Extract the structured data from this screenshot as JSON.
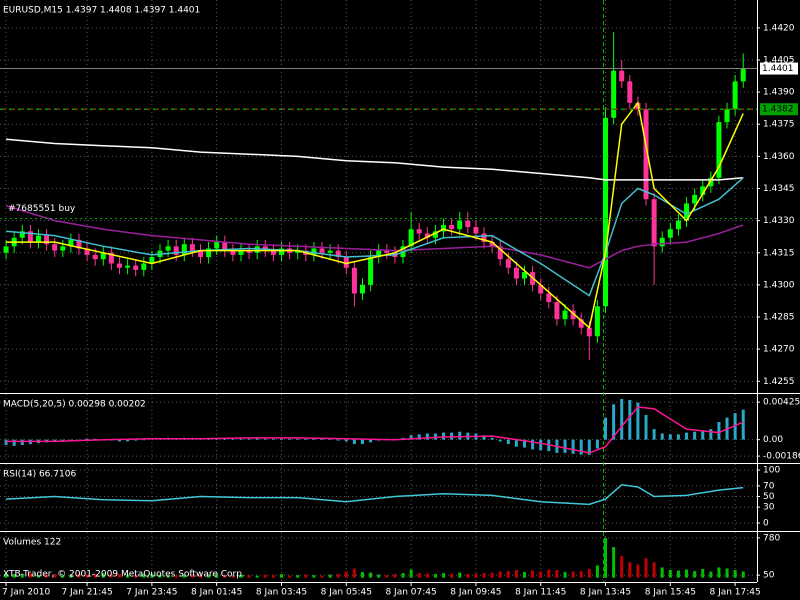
{
  "chart_data": [
    {
      "type": "candlestick",
      "title": "EURUSD,M15  1.4397 1.4408 1.4397 1.4401",
      "x": [
        0,
        1,
        2,
        3,
        4,
        5,
        6,
        7,
        8,
        9,
        10,
        11,
        12,
        13,
        14,
        15,
        16,
        17,
        18,
        19,
        20,
        21,
        22,
        23,
        24,
        25,
        26,
        27,
        28,
        29,
        30,
        31,
        32,
        33,
        34,
        35,
        36,
        37,
        38,
        39,
        40,
        41,
        42,
        43,
        44,
        45,
        46,
        47,
        48,
        49,
        50,
        51,
        52,
        53,
        54,
        55,
        56,
        57,
        58,
        59,
        60,
        61,
        62,
        63,
        64,
        65,
        66,
        67,
        68,
        69,
        70,
        71,
        72,
        73,
        74,
        75,
        76,
        77,
        78,
        79,
        80,
        81,
        82,
        83,
        84,
        85,
        86,
        87,
        88,
        89,
        90,
        91
      ],
      "open": [
        1.4315,
        1.4318,
        1.4322,
        1.4325,
        1.432,
        1.4323,
        1.4319,
        1.4316,
        1.4318,
        1.4321,
        1.4317,
        1.4314,
        1.4312,
        1.4315,
        1.431,
        1.4308,
        1.4309,
        1.4307,
        1.431,
        1.4313,
        1.4316,
        1.4318,
        1.4314,
        1.4319,
        1.4316,
        1.4313,
        1.4317,
        1.432,
        1.4316,
        1.4314,
        1.4316,
        1.4315,
        1.4318,
        1.4316,
        1.4314,
        1.4317,
        1.4315,
        1.4316,
        1.4314,
        1.4317,
        1.4315,
        1.4316,
        1.4313,
        1.4308,
        1.4296,
        1.43,
        1.4313,
        1.4316,
        1.4315,
        1.4313,
        1.4318,
        1.4326,
        1.4324,
        1.4322,
        1.4325,
        1.4328,
        1.4326,
        1.433,
        1.4327,
        1.4324,
        1.432,
        1.4318,
        1.4312,
        1.4308,
        1.4303,
        1.4306,
        1.43,
        1.4296,
        1.4292,
        1.4284,
        1.4288,
        1.4284,
        1.428,
        1.4276,
        1.429,
        1.4378,
        1.44,
        1.4395,
        1.4385,
        1.4382,
        1.434,
        1.4318,
        1.4322,
        1.4326,
        1.433,
        1.4338,
        1.4342,
        1.4346,
        1.435,
        1.4376,
        1.4382,
        1.4395
      ],
      "high": [
        1.4321,
        1.4325,
        1.4328,
        1.4328,
        1.4326,
        1.4326,
        1.4322,
        1.4321,
        1.4324,
        1.4324,
        1.432,
        1.4317,
        1.4318,
        1.4318,
        1.4313,
        1.4312,
        1.4312,
        1.4313,
        1.4316,
        1.4319,
        1.4321,
        1.4321,
        1.4322,
        1.4322,
        1.4319,
        1.432,
        1.4323,
        1.4323,
        1.4319,
        1.4319,
        1.4319,
        1.4321,
        1.4321,
        1.4319,
        1.432,
        1.432,
        1.4319,
        1.4319,
        1.432,
        1.432,
        1.4319,
        1.4319,
        1.4316,
        1.4311,
        1.4303,
        1.4316,
        1.4319,
        1.4319,
        1.4318,
        1.4321,
        1.4334,
        1.4329,
        1.4327,
        1.4328,
        1.4331,
        1.4331,
        1.4334,
        1.4334,
        1.433,
        1.4327,
        1.4323,
        1.4321,
        1.4315,
        1.4311,
        1.4309,
        1.4309,
        1.4303,
        1.4299,
        1.4295,
        1.4291,
        1.4291,
        1.4287,
        1.4283,
        1.4293,
        1.4383,
        1.4418,
        1.4405,
        1.4398,
        1.4388,
        1.4385,
        1.4343,
        1.4325,
        1.4329,
        1.4333,
        1.4341,
        1.4345,
        1.4349,
        1.4353,
        1.4379,
        1.4385,
        1.4398,
        1.4408
      ],
      "low": [
        1.4312,
        1.4315,
        1.4319,
        1.4317,
        1.4317,
        1.4316,
        1.4313,
        1.4313,
        1.4315,
        1.4314,
        1.4311,
        1.4309,
        1.4309,
        1.4307,
        1.4305,
        1.4305,
        1.4304,
        1.4304,
        1.4307,
        1.431,
        1.4313,
        1.4311,
        1.4311,
        1.4313,
        1.431,
        1.431,
        1.4314,
        1.4313,
        1.4311,
        1.4311,
        1.4312,
        1.4312,
        1.4313,
        1.4311,
        1.4311,
        1.4312,
        1.4312,
        1.4311,
        1.4311,
        1.4312,
        1.4312,
        1.431,
        1.4305,
        1.429,
        1.4293,
        1.4297,
        1.431,
        1.4312,
        1.431,
        1.431,
        1.4315,
        1.4321,
        1.4319,
        1.4319,
        1.4322,
        1.4323,
        1.4323,
        1.4324,
        1.4321,
        1.4317,
        1.4315,
        1.4309,
        1.4305,
        1.43,
        1.43,
        1.4297,
        1.4293,
        1.4289,
        1.4281,
        1.4281,
        1.4281,
        1.4277,
        1.4265,
        1.4273,
        1.4287,
        1.4375,
        1.4392,
        1.4382,
        1.4379,
        1.4337,
        1.43,
        1.4315,
        1.4319,
        1.4323,
        1.4327,
        1.4335,
        1.4339,
        1.4343,
        1.4347,
        1.4373,
        1.4379,
        1.4392
      ],
      "close": [
        1.4318,
        1.4322,
        1.4325,
        1.432,
        1.4323,
        1.4319,
        1.4316,
        1.4318,
        1.4321,
        1.4317,
        1.4314,
        1.4312,
        1.4315,
        1.431,
        1.4308,
        1.4309,
        1.4307,
        1.431,
        1.4313,
        1.4316,
        1.4318,
        1.4314,
        1.4319,
        1.4316,
        1.4313,
        1.4317,
        1.432,
        1.4316,
        1.4314,
        1.4316,
        1.4315,
        1.4318,
        1.4316,
        1.4314,
        1.4317,
        1.4315,
        1.4316,
        1.4314,
        1.4317,
        1.4315,
        1.4316,
        1.4313,
        1.4308,
        1.4296,
        1.43,
        1.4313,
        1.4316,
        1.4315,
        1.4313,
        1.4318,
        1.4326,
        1.4324,
        1.4322,
        1.4325,
        1.4328,
        1.4326,
        1.433,
        1.4327,
        1.4324,
        1.432,
        1.4318,
        1.4312,
        1.4308,
        1.4303,
        1.4306,
        1.43,
        1.4296,
        1.4292,
        1.4284,
        1.4288,
        1.4284,
        1.428,
        1.4276,
        1.429,
        1.4378,
        1.44,
        1.4395,
        1.4385,
        1.4382,
        1.434,
        1.4318,
        1.4322,
        1.4326,
        1.433,
        1.4338,
        1.4342,
        1.4346,
        1.435,
        1.4376,
        1.4382,
        1.4395,
        1.4401
      ],
      "up_color": "#00ff00",
      "down_color": "#ff3399",
      "series": [
        {
          "color": "#ffffff",
          "x": [
            0,
            6,
            12,
            18,
            24,
            30,
            36,
            42,
            48,
            54,
            60,
            66,
            72,
            74,
            76,
            78,
            80,
            84,
            88,
            91
          ],
          "values": [
            1.4368,
            1.4366,
            1.4365,
            1.4364,
            1.4362,
            1.4361,
            1.436,
            1.4358,
            1.4357,
            1.4355,
            1.4354,
            1.4352,
            1.435,
            1.4349,
            1.4349,
            1.4349,
            1.4349,
            1.4349,
            1.4349,
            1.435
          ]
        },
        {
          "color": "#9b1f9b",
          "x": [
            0,
            6,
            12,
            18,
            24,
            30,
            36,
            42,
            48,
            54,
            60,
            66,
            72,
            74,
            76,
            78,
            80,
            84,
            88,
            91
          ],
          "values": [
            1.4337,
            1.433,
            1.4326,
            1.4323,
            1.4321,
            1.4319,
            1.4318,
            1.4317,
            1.4316,
            1.4317,
            1.4318,
            1.4314,
            1.4308,
            1.4312,
            1.4316,
            1.4318,
            1.4319,
            1.432,
            1.4324,
            1.4328
          ]
        },
        {
          "color": "#40c0d0",
          "x": [
            0,
            6,
            12,
            18,
            24,
            30,
            36,
            42,
            48,
            54,
            60,
            66,
            72,
            74,
            76,
            78,
            80,
            84,
            88,
            91
          ],
          "values": [
            1.4325,
            1.4323,
            1.4318,
            1.4314,
            1.4316,
            1.4317,
            1.4316,
            1.4313,
            1.4314,
            1.4322,
            1.4323,
            1.431,
            1.4295,
            1.4315,
            1.4338,
            1.4345,
            1.4342,
            1.4333,
            1.434,
            1.435
          ]
        },
        {
          "color": "#ffff00",
          "x": [
            0,
            6,
            12,
            18,
            24,
            30,
            36,
            42,
            48,
            54,
            60,
            66,
            72,
            74,
            76,
            78,
            80,
            84,
            88,
            91
          ],
          "values": [
            1.432,
            1.432,
            1.4315,
            1.431,
            1.4316,
            1.4316,
            1.4316,
            1.431,
            1.4315,
            1.4326,
            1.432,
            1.43,
            1.428,
            1.4315,
            1.4375,
            1.4385,
            1.4345,
            1.433,
            1.4355,
            1.438
          ]
        }
      ],
      "bid": 1.4401,
      "level": 1.4382,
      "order": {
        "label": "#7685551 buy",
        "value": 1.4331
      },
      "xlim": [
        -0.75,
        92.7
      ],
      "ylim": [
        1.425,
        1.4433
      ],
      "yticks": [
        {
          "value": 1.442,
          "label": "1.4420"
        },
        1.4405,
        {
          "value": 1.439,
          "label": "1.4390"
        },
        1.4375,
        {
          "value": 1.436,
          "label": "1.4360"
        },
        1.4345,
        {
          "value": 1.433,
          "label": "1.4330"
        },
        1.4315,
        {
          "value": 1.43,
          "label": "1.4300"
        },
        1.4285,
        {
          "value": 1.427,
          "label": "1.4270"
        },
        1.4255
      ],
      "grid": true
    },
    {
      "type": "bar",
      "title": "MACD(5,20,5) 0.00298 0.00202",
      "color": "#2aa9c9",
      "values": [
        -0.0006,
        -0.0007,
        -0.0006,
        -0.0005,
        -0.0004,
        -0.0003,
        -0.0002,
        -0.0001,
        -0.0001,
        0,
        0.0001,
        0.0001,
        -0.0001,
        -0.0001,
        -0.0002,
        -0.0002,
        -0.0001,
        0,
        0.0001,
        0.0001,
        0.0002,
        0.0001,
        0.0002,
        0.0002,
        0.0001,
        0.0001,
        0.0002,
        0.0001,
        0.0001,
        0.0001,
        0.0001,
        0.0002,
        0.0001,
        0.0001,
        0.0001,
        0.0001,
        0.0001,
        0.0001,
        0.0001,
        0.0001,
        0.0001,
        -0.0001,
        -0.0002,
        -0.0005,
        -0.0005,
        -0.0003,
        -0.0001,
        0.0001,
        0.0001,
        0.0002,
        0.0005,
        0.0006,
        0.0007,
        0.0007,
        0.0008,
        0.0008,
        0.0009,
        0.0008,
        0.0007,
        0.0005,
        0.0002,
        -0.0002,
        -0.0005,
        -0.0008,
        -0.0009,
        -0.0011,
        -0.0012,
        -0.0013,
        -0.0015,
        -0.0015,
        -0.0016,
        -0.0017,
        -0.0017,
        -0.001,
        0.0025,
        0.004,
        0.0046,
        0.0045,
        0.0042,
        0.0028,
        0.0012,
        0.0007,
        0.0006,
        0.0006,
        0.0008,
        0.0009,
        0.001,
        0.0012,
        0.002,
        0.0025,
        0.003,
        0.0034
      ],
      "series": [
        {
          "color": "#ff1493",
          "x": [
            0,
            6,
            12,
            18,
            24,
            30,
            36,
            42,
            48,
            54,
            60,
            66,
            72,
            74,
            76,
            78,
            80,
            84,
            88,
            91
          ],
          "values": [
            -0.0002,
            -0.0002,
            0.0,
            0.0001,
            0.0001,
            0.0002,
            0.0002,
            0.0001,
            0.0,
            0.0003,
            0.0004,
            -0.0004,
            -0.0015,
            -0.0008,
            0.0015,
            0.0037,
            0.0035,
            0.0012,
            0.0008,
            0.002
          ]
        }
      ],
      "xlim": [
        -0.75,
        92.7
      ],
      "ylim": [
        -0.00253,
        0.00517
      ],
      "yticks": [
        0.00425,
        {
          "value": 0,
          "label": "0.00"
        },
        -0.00186
      ],
      "grid": true
    },
    {
      "type": "line",
      "title": "RSI(14) 66.7106",
      "series": [
        {
          "color": "#40c8d8",
          "x": [
            0,
            6,
            12,
            18,
            24,
            30,
            36,
            42,
            48,
            54,
            60,
            66,
            72,
            74,
            76,
            78,
            80,
            84,
            88,
            91
          ],
          "values": [
            45,
            50,
            44,
            42,
            50,
            48,
            48,
            40,
            50,
            55,
            52,
            40,
            35,
            45,
            72,
            68,
            50,
            52,
            62,
            66.7106
          ]
        }
      ],
      "xlim": [
        -0.75,
        92.7
      ],
      "ylim": [
        -13.2,
        111.3
      ],
      "yticks": [
        100,
        70,
        50,
        30,
        0
      ],
      "grid": true
    },
    {
      "type": "bar",
      "title": "Volumes 122",
      "up_color": "#00c000",
      "down_color": "#c00000",
      "values": [
        80,
        70,
        60,
        90,
        50,
        60,
        70,
        50,
        60,
        80,
        60,
        70,
        90,
        80,
        70,
        60,
        50,
        70,
        80,
        60,
        50,
        40,
        60,
        70,
        50,
        60,
        70,
        50,
        40,
        60,
        50,
        40,
        60,
        50,
        70,
        40,
        50,
        60,
        50,
        40,
        60,
        70,
        120,
        180,
        110,
        100,
        60,
        50,
        70,
        90,
        160,
        90,
        80,
        70,
        90,
        80,
        100,
        70,
        80,
        90,
        100,
        120,
        130,
        150,
        110,
        140,
        120,
        160,
        150,
        110,
        120,
        130,
        170,
        240,
        780,
        600,
        420,
        300,
        260,
        380,
        300,
        200,
        150,
        140,
        160,
        130,
        170,
        120,
        200,
        180,
        150,
        122
      ],
      "xlim": [
        -0.75,
        92.7
      ],
      "ylim": [
        -65,
        895
      ],
      "yticks": [
        780,
        50
      ],
      "xticks": [
        {
          "value": 0,
          "label": "7 Jan 2010"
        },
        {
          "value": 10,
          "label": "7 Jan 21:45"
        },
        {
          "value": 18,
          "label": "7 Jan 23:45"
        },
        {
          "value": 26,
          "label": "8 Jan 01:45"
        },
        {
          "value": 34,
          "label": "8 Jan 03:45"
        },
        {
          "value": 42,
          "label": "8 Jan 05:45"
        },
        {
          "value": 50,
          "label": "8 Jan 07:45"
        },
        {
          "value": 58,
          "label": "8 Jan 09:45"
        },
        {
          "value": 66,
          "label": "8 Jan 11:45"
        },
        {
          "value": 74,
          "label": "8 Jan 13:45"
        },
        {
          "value": 82,
          "label": "8 Jan 15:45"
        },
        {
          "value": 90,
          "label": "8 Jan 17:45"
        }
      ],
      "credit": "XTB-Trader, © 2001-2009 MetaQuotes Software Corp.",
      "grid": true
    }
  ]
}
